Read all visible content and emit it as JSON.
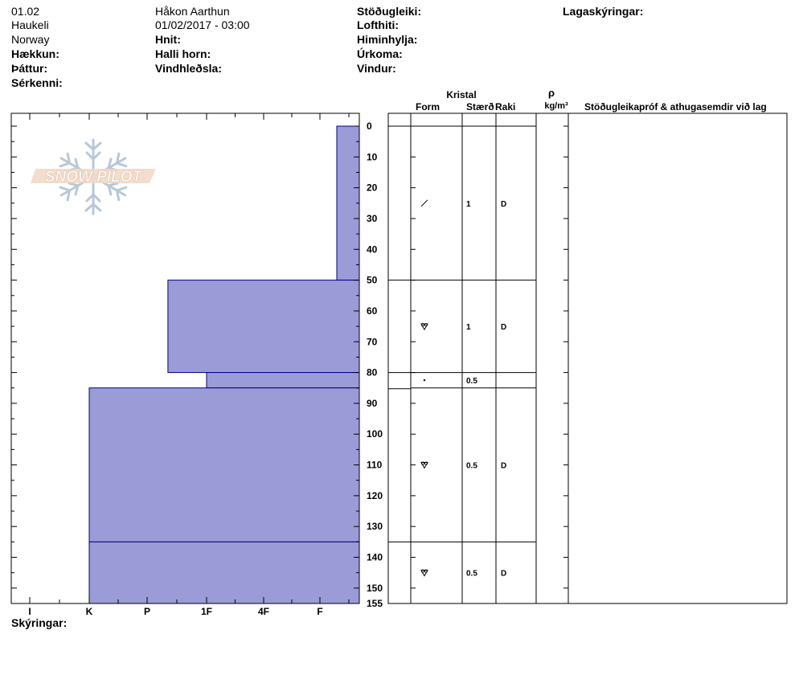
{
  "header": {
    "col1": [
      "01.02",
      "Haukeli",
      "Norway"
    ],
    "col1_labels": [
      "Hækkun:",
      "Þáttur:",
      "Sérkenni:"
    ],
    "col2": [
      "Håkon Aarthun",
      "01/02/2017 - 03:00"
    ],
    "col2_labels": [
      "Hnit:",
      "Halli horn:",
      "Vindhleðsla:"
    ],
    "col3_labels": [
      "Stöðugleiki:",
      "Lofthiti:",
      "Himinhylja:",
      "Úrkoma:",
      "Vindur:"
    ],
    "col4_label": "Lagaskýringar:"
  },
  "footer": {
    "label": "Skýringar:"
  },
  "logo": {
    "text": "SNOW PILOT"
  },
  "table": {
    "kristal": "Kristal",
    "form": "Form",
    "size": "Stærð",
    "moist": "Raki",
    "rho": "ρ",
    "density_unit": "kg/m³",
    "remarks": "Stöðugleikapróf & athugasemdir við lag"
  },
  "chart_data": {
    "type": "bar",
    "orientation": "horizontal",
    "ylabel": "",
    "xlabel": "",
    "x_categories": [
      "I",
      "K",
      "P",
      "1F",
      "4F",
      "F"
    ],
    "y_ticks": [
      0,
      10,
      20,
      30,
      40,
      50,
      60,
      70,
      80,
      90,
      100,
      110,
      120,
      130,
      140,
      150,
      155
    ],
    "ylim": [
      0,
      155
    ],
    "hardness_profile": [
      {
        "top": 0,
        "bottom": 50,
        "hardness": 5.3
      },
      {
        "top": 50,
        "bottom": 80,
        "hardness": 2.35
      },
      {
        "top": 80,
        "bottom": 85,
        "hardness": 3.0
      },
      {
        "top": 85,
        "bottom": 135,
        "hardness": 1.0
      },
      {
        "top": 135,
        "bottom": 155,
        "hardness": 1.0
      }
    ],
    "layers": [
      {
        "top": 0,
        "bottom": 50,
        "form": "slash",
        "size": "1",
        "moisture": "D"
      },
      {
        "top": 50,
        "bottom": 80,
        "form": "facet",
        "size": "1",
        "moisture": "D"
      },
      {
        "top": 80,
        "bottom": 85,
        "form": "dot",
        "size": "0.5",
        "moisture": ""
      },
      {
        "top": 85,
        "bottom": 135,
        "form": "facet",
        "size": "0.5",
        "moisture": "D"
      },
      {
        "top": 135,
        "bottom": 155,
        "form": "facet",
        "size": "0.5",
        "moisture": "D"
      }
    ],
    "colors": {
      "fill": "#9b9bd7",
      "stroke": "#00008b"
    }
  }
}
